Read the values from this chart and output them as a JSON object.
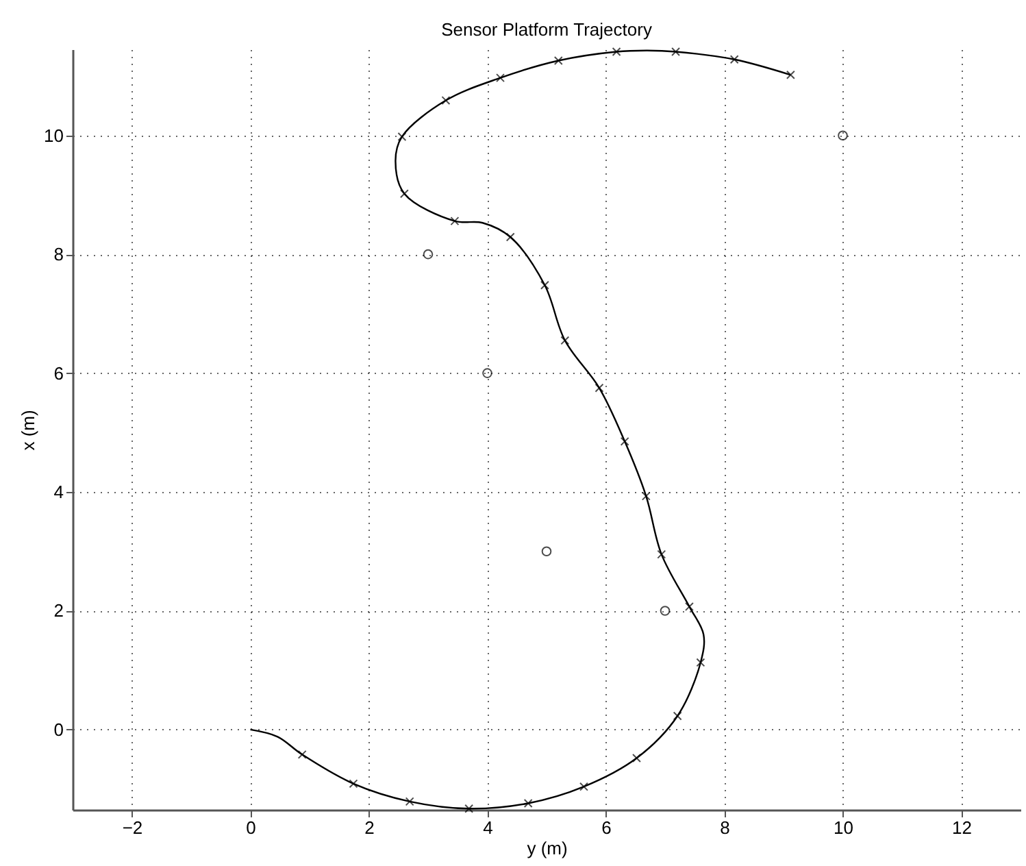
{
  "chart_data": {
    "type": "line",
    "title": "Sensor Platform Trajectory",
    "xlabel": "y (m)",
    "ylabel": "x (m)",
    "xlim": [
      -3,
      13
    ],
    "xticks": [
      -2,
      0,
      2,
      4,
      6,
      8,
      10,
      12
    ],
    "ylim": [
      -1.35,
      11.45
    ],
    "yticks": [
      0,
      2,
      4,
      6,
      8,
      10
    ],
    "grid": true,
    "series": [
      {
        "marker": "none",
        "line_style": "solid",
        "color": "#000000",
        "x": [
          0,
          0.46,
          0.875,
          1.74,
          2.69,
          3.69,
          4.69,
          5.63,
          6.52,
          7.21,
          7.6,
          7.65,
          7.41,
          6.94,
          6.68,
          6.32,
          5.89,
          5.31,
          4.97,
          4.39,
          3.92,
          3.45,
          2.6,
          2.45,
          2.56,
          3.3,
          4.22,
          5.2,
          6.18,
          6.7,
          7.18,
          8.17,
          9.12
        ],
        "values": [
          0,
          -0.12,
          -0.42,
          -0.91,
          -1.21,
          -1.33,
          -1.24,
          -0.96,
          -0.48,
          0.23,
          1.13,
          1.6,
          2.07,
          2.95,
          3.93,
          4.85,
          5.75,
          6.55,
          7.48,
          8.29,
          8.53,
          8.56,
          9.02,
          9.57,
          9.98,
          10.59,
          10.97,
          11.26,
          11.41,
          11.43,
          11.41,
          11.28,
          11.02
        ]
      },
      {
        "type": "scatter",
        "marker": "cross",
        "color": "#000000",
        "x": [
          0.875,
          1.74,
          2.69,
          3.69,
          4.69,
          5.63,
          6.52,
          7.21,
          7.6,
          7.41,
          6.94,
          6.68,
          6.32,
          5.89,
          5.31,
          4.97,
          4.39,
          3.45,
          2.6,
          2.56,
          3.3,
          4.22,
          5.2,
          6.18,
          7.18,
          8.17,
          9.12
        ],
        "values": [
          -0.42,
          -0.91,
          -1.21,
          -1.33,
          -1.24,
          -0.96,
          -0.48,
          0.23,
          1.13,
          2.07,
          2.95,
          3.93,
          4.85,
          5.75,
          6.55,
          7.48,
          8.29,
          8.56,
          9.02,
          9.98,
          10.59,
          10.97,
          11.26,
          11.41,
          11.41,
          11.28,
          11.02
        ]
      },
      {
        "type": "scatter",
        "marker": "circle",
        "color": "#000000",
        "x": [
          10,
          3,
          4,
          5,
          7
        ],
        "values": [
          10,
          8,
          6,
          3,
          2
        ]
      }
    ]
  }
}
